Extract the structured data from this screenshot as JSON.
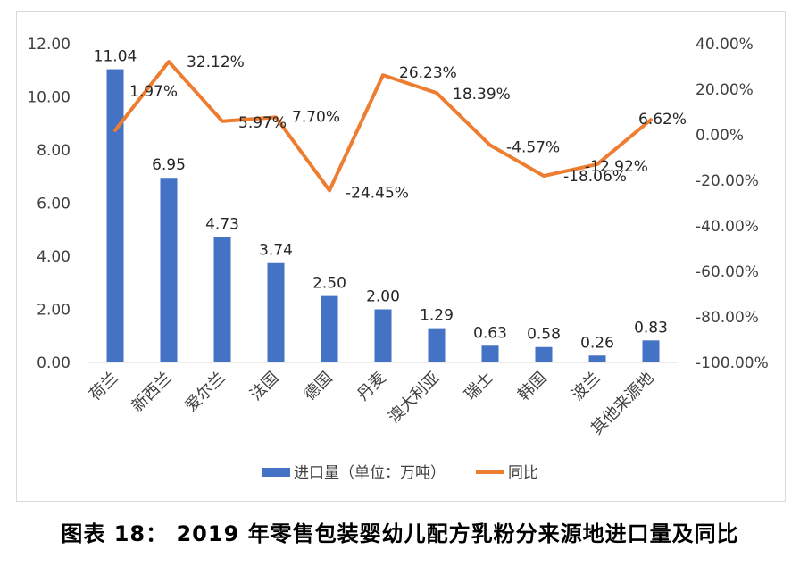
{
  "caption": "图表 18：   2019 年零售包装婴幼儿配方乳粉分来源地进口量及同比",
  "chart_data": {
    "type": "bar+line",
    "categories": [
      "荷兰",
      "新西兰",
      "爱尔兰",
      "法国",
      "德国",
      "丹麦",
      "澳大利亚",
      "瑞士",
      "韩国",
      "波兰",
      "其他来源地"
    ],
    "series": [
      {
        "name": "进口量（单位：万吨）",
        "type": "bar",
        "axis": "left",
        "color": "#4472c4",
        "values": [
          11.04,
          6.95,
          4.73,
          3.74,
          2.5,
          2.0,
          1.29,
          0.63,
          0.58,
          0.26,
          0.83
        ],
        "labels": [
          "11.04",
          "6.95",
          "4.73",
          "3.74",
          "2.50",
          "2.00",
          "1.29",
          "0.63",
          "0.58",
          "0.26",
          "0.83"
        ]
      },
      {
        "name": "同比",
        "type": "line",
        "axis": "right",
        "color": "#ed7d31",
        "values": [
          1.97,
          32.12,
          5.97,
          7.7,
          -24.45,
          26.23,
          18.39,
          -4.57,
          -18.06,
          -12.92,
          6.62
        ],
        "labels": [
          "1.97%",
          "32.12%",
          "5.97%",
          "7.70%",
          "-24.45%",
          "26.23%",
          "18.39%",
          "-4.57%",
          "-18.06%",
          "-12.92%",
          "6.62%"
        ]
      }
    ],
    "y_left": {
      "min": 0,
      "max": 12,
      "step": 2,
      "ticks": [
        "0.00",
        "2.00",
        "4.00",
        "6.00",
        "8.00",
        "10.00",
        "12.00"
      ]
    },
    "y_right": {
      "min": -100,
      "max": 40,
      "step": 20,
      "ticks": [
        "-100.00%",
        "-80.00%",
        "-60.00%",
        "-40.00%",
        "-20.00%",
        "0.00%",
        "20.00%",
        "40.00%"
      ]
    },
    "grid": false,
    "legend": "bottom"
  }
}
